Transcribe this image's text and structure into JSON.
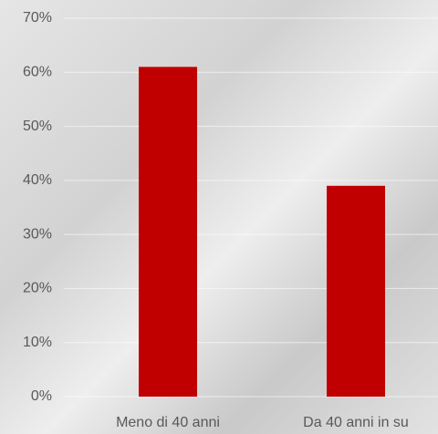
{
  "chart_data": {
    "type": "bar",
    "categories": [
      "Meno di 40 anni",
      "Da 40 anni in su"
    ],
    "values": [
      61,
      39
    ],
    "color": "#c00000",
    "ylim": [
      0,
      70
    ],
    "yticks": [
      {
        "value": 0,
        "label": "0%"
      },
      {
        "value": 10,
        "label": "10%"
      },
      {
        "value": 20,
        "label": "20%"
      },
      {
        "value": 30,
        "label": "30%"
      },
      {
        "value": 40,
        "label": "40%"
      },
      {
        "value": 50,
        "label": "50%"
      },
      {
        "value": 60,
        "label": "60%"
      },
      {
        "value": 70,
        "label": "70%"
      }
    ],
    "grid": true
  }
}
